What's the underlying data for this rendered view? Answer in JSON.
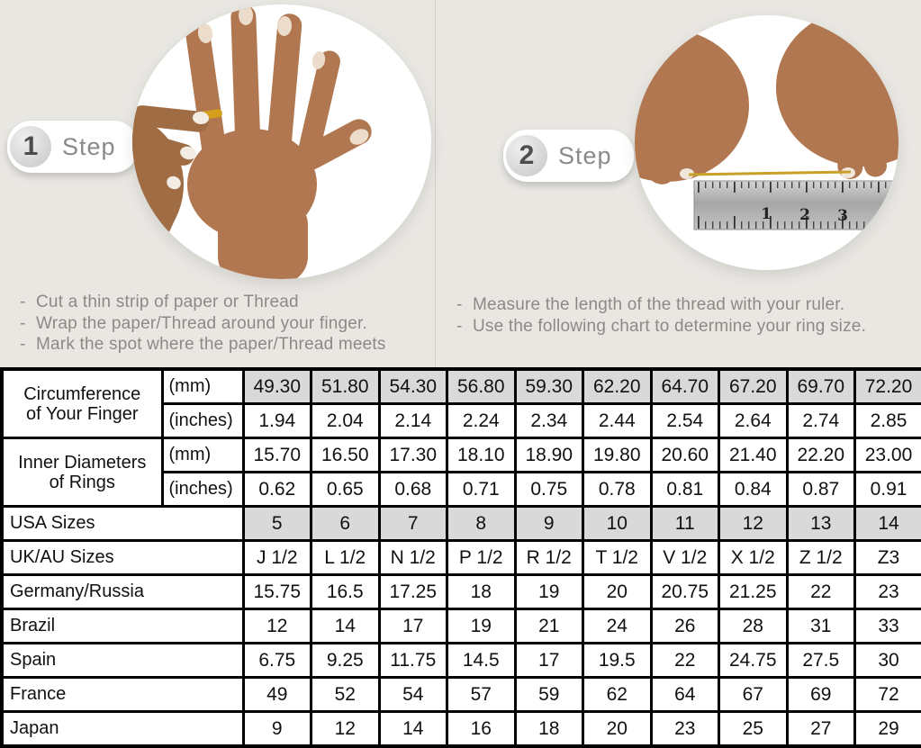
{
  "colors": {
    "background": "#e9e7e2",
    "table_shaded_cell": "#d9d9d9",
    "table_border": "#000000",
    "instruction_text": "#8d8a86",
    "badge_text": "#8a8a8a",
    "gold_thread": "#c8a028",
    "skin_tone": "#b07750"
  },
  "bullets": {
    "dash": "-"
  },
  "steps": [
    {
      "number": "1",
      "label": "Step",
      "instructions": [
        "Cut a thin strip of paper or Thread",
        "Wrap the paper/Thread around your finger.",
        "Mark the spot where the paper/Thread meets"
      ]
    },
    {
      "number": "2",
      "label": "Step",
      "instructions": [
        "Measure the length of the thread with your ruler.",
        "Use the following chart to determine your ring size."
      ]
    }
  ],
  "ruler": {
    "numbers": [
      "1",
      "2",
      "3"
    ]
  },
  "table": {
    "rows": [
      {
        "label_lines": [
          "Circumference",
          "of Your Finger"
        ],
        "rowspan": 2,
        "unit": "(mm)",
        "shaded": true,
        "values": [
          "49.30",
          "51.80",
          "54.30",
          "56.80",
          "59.30",
          "62.20",
          "64.70",
          "67.20",
          "69.70",
          "72.20"
        ]
      },
      {
        "unit": "(inches)",
        "shaded": false,
        "values": [
          "1.94",
          "2.04",
          "2.14",
          "2.24",
          "2.34",
          "2.44",
          "2.54",
          "2.64",
          "2.74",
          "2.85"
        ]
      },
      {
        "label_lines": [
          "Inner Diameters",
          "of Rings"
        ],
        "rowspan": 2,
        "unit": "(mm)",
        "shaded": false,
        "values": [
          "15.70",
          "16.50",
          "17.30",
          "18.10",
          "18.90",
          "19.80",
          "20.60",
          "21.40",
          "22.20",
          "23.00"
        ]
      },
      {
        "unit": "(inches)",
        "shaded": false,
        "values": [
          "0.62",
          "0.65",
          "0.68",
          "0.71",
          "0.75",
          "0.78",
          "0.81",
          "0.84",
          "0.87",
          "0.91"
        ]
      },
      {
        "label": "USA Sizes",
        "colspan": 2,
        "shaded": true,
        "values": [
          "5",
          "6",
          "7",
          "8",
          "9",
          "10",
          "11",
          "12",
          "13",
          "14"
        ]
      },
      {
        "label": "UK/AU Sizes",
        "colspan": 2,
        "shaded": false,
        "values": [
          "J 1/2",
          "L 1/2",
          "N 1/2",
          "P 1/2",
          "R 1/2",
          "T 1/2",
          "V 1/2",
          "X 1/2",
          "Z 1/2",
          "Z3"
        ]
      },
      {
        "label": "Germany/Russia",
        "colspan": 2,
        "shaded": false,
        "values": [
          "15.75",
          "16.5",
          "17.25",
          "18",
          "19",
          "20",
          "20.75",
          "21.25",
          "22",
          "23"
        ]
      },
      {
        "label": "Brazil",
        "colspan": 2,
        "shaded": false,
        "values": [
          "12",
          "14",
          "17",
          "19",
          "21",
          "24",
          "26",
          "28",
          "31",
          "33"
        ]
      },
      {
        "label": "Spain",
        "colspan": 2,
        "shaded": false,
        "values": [
          "6.75",
          "9.25",
          "11.75",
          "14.5",
          "17",
          "19.5",
          "22",
          "24.75",
          "27.5",
          "30"
        ]
      },
      {
        "label": "France",
        "colspan": 2,
        "shaded": false,
        "values": [
          "49",
          "52",
          "54",
          "57",
          "59",
          "62",
          "64",
          "67",
          "69",
          "72"
        ]
      },
      {
        "label": "Japan",
        "colspan": 2,
        "shaded": false,
        "values": [
          "9",
          "12",
          "14",
          "16",
          "18",
          "20",
          "23",
          "25",
          "27",
          "29"
        ]
      }
    ]
  }
}
